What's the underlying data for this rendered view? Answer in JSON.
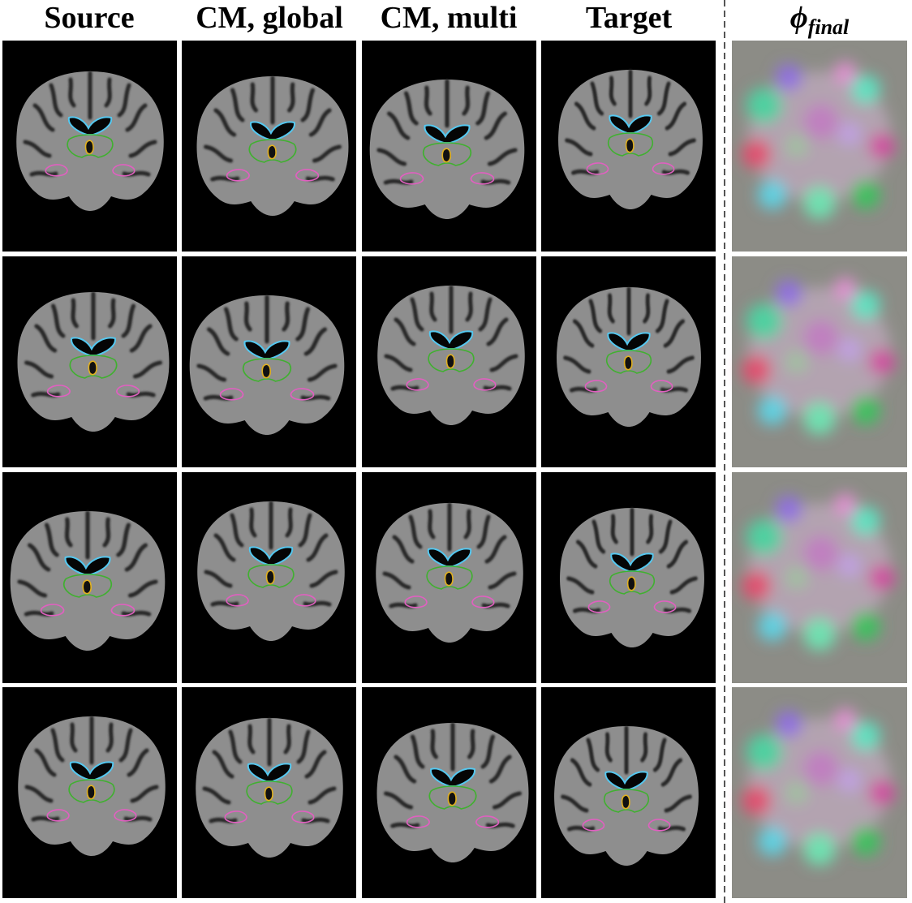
{
  "header": {
    "columns": [
      "Source",
      "CM, global",
      "CM, multi",
      "Target"
    ],
    "deformation": {
      "symbol": "ϕ",
      "subscript": "final"
    }
  }
}
